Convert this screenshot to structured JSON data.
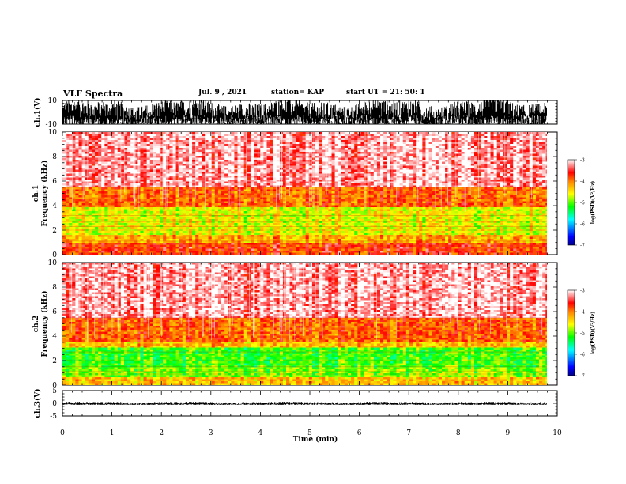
{
  "header": {
    "title": "VLF Spectra",
    "date": "Jul. 9 , 2021",
    "station": "station= KAP",
    "start_ut": "start UT =  21: 50: 1"
  },
  "colors": {
    "background": "#ffffff",
    "axes": "#000000",
    "colormap": [
      "#000080",
      "#0000ff",
      "#00ffff",
      "#00ff00",
      "#ffff00",
      "#ff8000",
      "#ff0000",
      "#ffffff"
    ]
  },
  "chart_data": [
    {
      "type": "line",
      "panel": "ch1-waveform",
      "ylabel": "ch.1(V)",
      "ylim": [
        -10,
        10
      ],
      "yticks": [
        "10",
        "-10"
      ],
      "xlim": [
        0,
        9.83
      ],
      "description_series": "dense broadband waveform",
      "envelope_min": -10,
      "envelope_max": 10
    },
    {
      "type": "heatmap",
      "panel": "ch1-spectrogram",
      "ylabel": "ch.1\nFrequency (kHz)",
      "ylabel_lines": [
        "ch.1",
        "Frequency (kHz)"
      ],
      "ylim": [
        0,
        10
      ],
      "yticks": [
        "0",
        "2",
        "4",
        "6",
        "8",
        "10"
      ],
      "xlim": [
        0,
        9.83
      ],
      "colorbar": {
        "label": "log(PSD)(V²/Hz)",
        "range": [
          -7,
          -3
        ],
        "ticks": [
          "-3",
          "-4",
          "-5",
          "-6",
          "-7"
        ]
      },
      "bands": [
        {
          "fmin": 0.0,
          "fmax": 1.0,
          "level": -3.7
        },
        {
          "fmin": 1.0,
          "fmax": 1.6,
          "level": -4.2
        },
        {
          "fmin": 1.6,
          "fmax": 3.8,
          "level": -4.6
        },
        {
          "fmin": 3.8,
          "fmax": 5.5,
          "level": -3.9
        },
        {
          "fmin": 5.5,
          "fmax": 10.0,
          "level": -3.2
        }
      ]
    },
    {
      "type": "heatmap",
      "panel": "ch2-spectrogram",
      "ylabel": "ch.2\nFrequency (kHz)",
      "ylabel_lines": [
        "ch.2",
        "Frequency (kHz)"
      ],
      "ylim": [
        0,
        10
      ],
      "yticks": [
        "0",
        "2",
        "4",
        "6",
        "8",
        "10"
      ],
      "xlim": [
        0,
        9.83
      ],
      "colorbar": {
        "label": "log(PSD)(V²/Hz)",
        "range": [
          -7,
          -3
        ],
        "ticks": [
          "-3",
          "-4",
          "-5",
          "-6",
          "-7"
        ]
      },
      "bands": [
        {
          "fmin": 0.0,
          "fmax": 0.6,
          "level": -4.3
        },
        {
          "fmin": 0.6,
          "fmax": 1.4,
          "level": -4.9
        },
        {
          "fmin": 1.4,
          "fmax": 3.0,
          "level": -5.1
        },
        {
          "fmin": 3.0,
          "fmax": 3.6,
          "level": -4.3
        },
        {
          "fmin": 3.6,
          "fmax": 5.5,
          "level": -3.9
        },
        {
          "fmin": 5.5,
          "fmax": 10.0,
          "level": -3.2
        }
      ]
    },
    {
      "type": "line",
      "panel": "ch3-waveform",
      "ylabel": "ch.3(V)",
      "ylim": [
        -5,
        5
      ],
      "yticks": [
        "5",
        "0",
        "-5"
      ],
      "xlim": [
        0,
        9.83
      ],
      "envelope_min": -0.6,
      "envelope_max": 0.6,
      "xlabel": "Time (min)",
      "xticks": [
        "0",
        "1",
        "2",
        "3",
        "4",
        "5",
        "6",
        "7",
        "8",
        "9",
        "10"
      ],
      "xtick_values": [
        0,
        1,
        2,
        3,
        4,
        5,
        6,
        7,
        8,
        9,
        10
      ]
    }
  ]
}
